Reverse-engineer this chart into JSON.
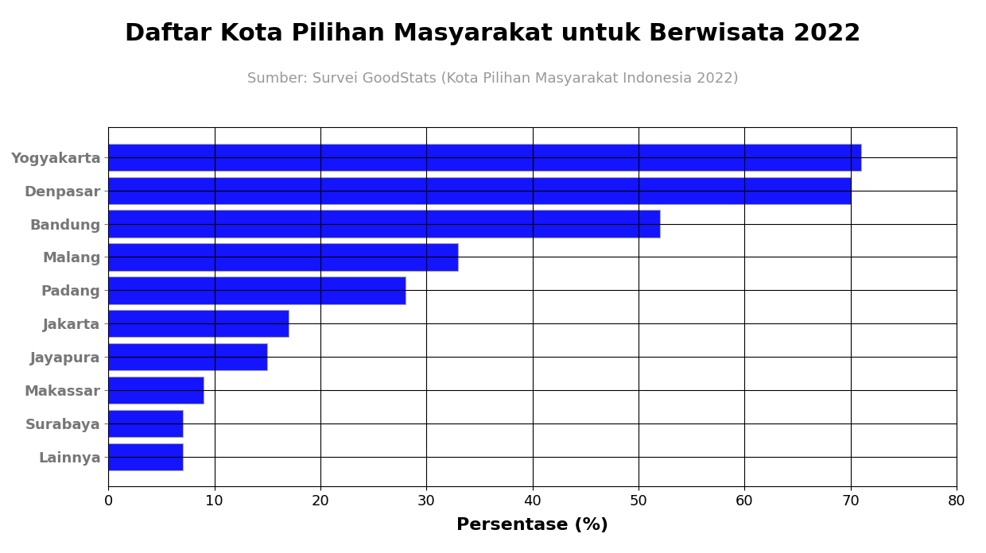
{
  "title": "Daftar Kota Pilihan Masyarakat untuk Berwisata 2022",
  "subtitle": "Sumber: Survei GoodStats (Kota Pilihan Masyarakat Indonesia 2022)",
  "xlabel": "Persentase (%)",
  "categories": [
    "Yogyakarta",
    "Denpasar",
    "Bandung",
    "Malang",
    "Padang",
    "Jakarta",
    "Jayapura",
    "Makassar",
    "Surabaya",
    "Lainnya"
  ],
  "values": [
    71,
    70,
    52,
    33,
    28,
    17,
    15,
    9,
    7,
    7
  ],
  "bar_color": "#1414FF",
  "bar_edgecolor": "#aaaaaa",
  "bar_edgewidth": 0.8,
  "title_fontsize": 22,
  "subtitle_fontsize": 13,
  "xlabel_fontsize": 16,
  "tick_fontsize": 13,
  "xlim": [
    0,
    80
  ],
  "xticks": [
    0,
    10,
    20,
    30,
    40,
    50,
    60,
    70,
    80
  ],
  "background_color": "#ffffff",
  "title_color": "#000000",
  "subtitle_color": "#999999",
  "ytick_color": "#777777",
  "grid_color": "#000000",
  "bar_height": 0.82
}
